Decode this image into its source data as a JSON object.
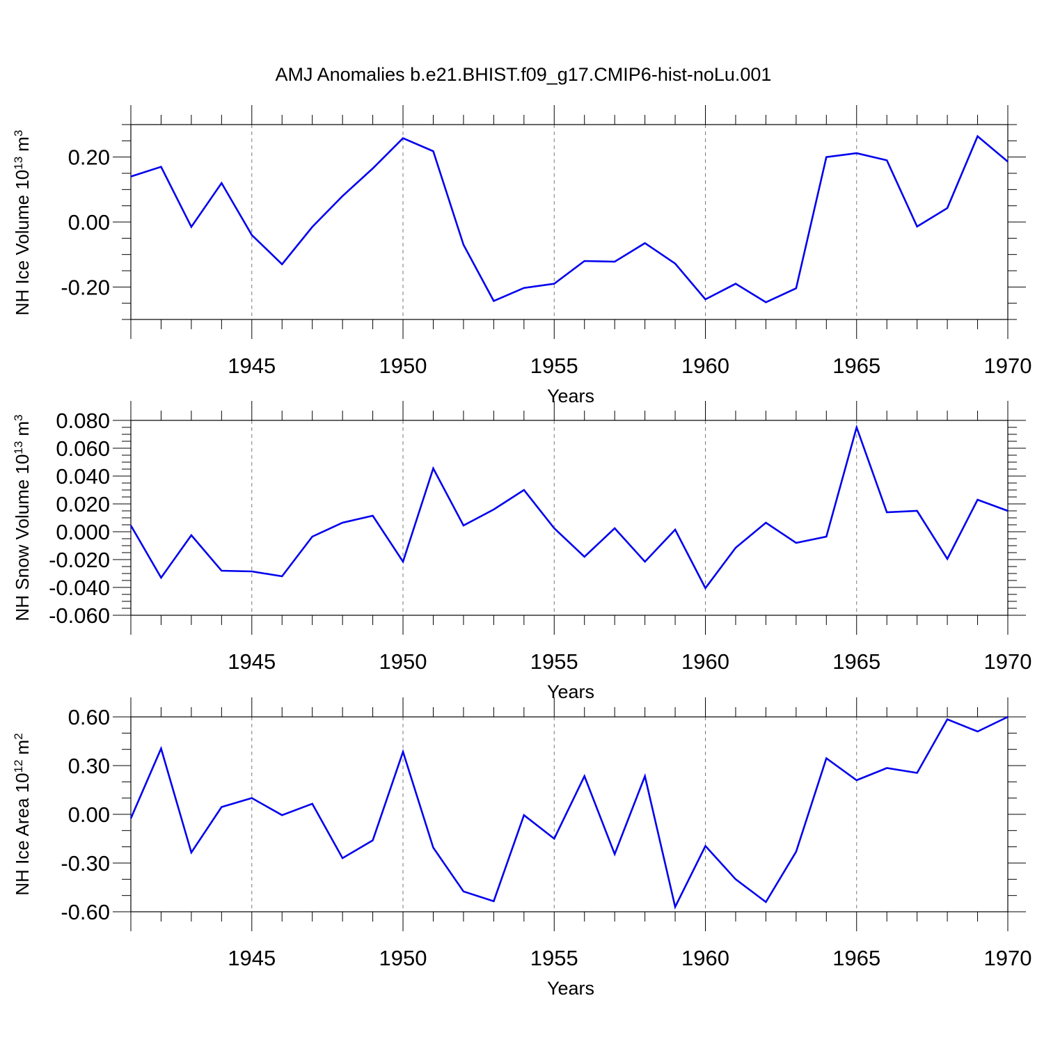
{
  "figure": {
    "title": "AMJ Anomalies b.e21.BHIST.f09_g17.CMIP6-hist-noLu.001"
  },
  "chart_data": [
    {
      "type": "line",
      "ylabel_main": "NH Ice Volume 10",
      "ylabel_exp": "13",
      "ylabel_unit": "m",
      "ylabel_unit_exp": "3",
      "xlabel": "Years",
      "xlim": [
        1941,
        1970
      ],
      "ylim": [
        -0.3,
        0.3
      ],
      "yticks": [
        -0.2,
        0.0,
        0.2
      ],
      "ytick_labels": [
        "-0.20",
        "0.00",
        "0.20"
      ],
      "yminor_step": 0.05,
      "xticks": [
        1945,
        1950,
        1955,
        1960,
        1965,
        1970
      ],
      "xtick_labels": [
        "1945",
        "1950",
        "1955",
        "1960",
        "1965",
        "1970"
      ],
      "line_color": "#0000ee",
      "series": [
        {
          "name": "NH Ice Volume",
          "x": [
            1941,
            1942,
            1943,
            1944,
            1945,
            1946,
            1947,
            1948,
            1949,
            1950,
            1951,
            1952,
            1953,
            1954,
            1955,
            1956,
            1957,
            1958,
            1959,
            1960,
            1961,
            1962,
            1963,
            1964,
            1965,
            1966,
            1967,
            1968,
            1969,
            1970
          ],
          "values": [
            0.14,
            0.17,
            -0.015,
            0.12,
            -0.04,
            -0.13,
            -0.015,
            0.08,
            0.165,
            0.258,
            0.218,
            -0.07,
            -0.243,
            -0.203,
            -0.19,
            -0.12,
            -0.122,
            -0.065,
            -0.128,
            -0.238,
            -0.19,
            -0.247,
            -0.204,
            0.2,
            0.212,
            0.19,
            -0.014,
            0.043,
            0.264,
            0.186
          ]
        }
      ]
    },
    {
      "type": "line",
      "ylabel_main": "NH Snow Volume 10",
      "ylabel_exp": "13",
      "ylabel_unit": "m",
      "ylabel_unit_exp": "3",
      "xlabel": "Years",
      "xlim": [
        1941,
        1970
      ],
      "ylim": [
        -0.06,
        0.08
      ],
      "yticks": [
        -0.06,
        -0.04,
        -0.02,
        0.0,
        0.02,
        0.04,
        0.06,
        0.08
      ],
      "ytick_labels": [
        "-0.060",
        "-0.040",
        "-0.020",
        "0.000",
        "0.020",
        "0.040",
        "0.060",
        "0.080"
      ],
      "yminor_step": 0.005,
      "xticks": [
        1945,
        1950,
        1955,
        1960,
        1965,
        1970
      ],
      "xtick_labels": [
        "1945",
        "1950",
        "1955",
        "1960",
        "1965",
        "1970"
      ],
      "line_color": "#0000ee",
      "series": [
        {
          "name": "NH Snow Volume",
          "x": [
            1941,
            1942,
            1943,
            1944,
            1945,
            1946,
            1947,
            1948,
            1949,
            1950,
            1951,
            1952,
            1953,
            1954,
            1955,
            1956,
            1957,
            1958,
            1959,
            1960,
            1961,
            1962,
            1963,
            1964,
            1965,
            1966,
            1967,
            1968,
            1969,
            1970
          ],
          "values": [
            0.0045,
            -0.033,
            -0.0025,
            -0.028,
            -0.0285,
            -0.032,
            -0.0035,
            0.0065,
            0.0115,
            -0.0215,
            0.0455,
            0.0045,
            0.016,
            0.03,
            0.0025,
            -0.018,
            0.0025,
            -0.0215,
            0.0015,
            -0.0405,
            -0.0115,
            0.0065,
            -0.008,
            -0.0035,
            0.075,
            0.014,
            0.015,
            -0.0195,
            0.023,
            0.015
          ]
        }
      ]
    },
    {
      "type": "line",
      "ylabel_main": "NH Ice Area 10",
      "ylabel_exp": "12",
      "ylabel_unit": "m",
      "ylabel_unit_exp": "2",
      "xlabel": "Years",
      "xlim": [
        1941,
        1970
      ],
      "ylim": [
        -0.6,
        0.6
      ],
      "yticks": [
        -0.6,
        -0.3,
        0.0,
        0.3,
        0.6
      ],
      "ytick_labels": [
        "-0.60",
        "-0.30",
        "0.00",
        "0.30",
        "0.60"
      ],
      "yminor_step": 0.1,
      "xticks": [
        1945,
        1950,
        1955,
        1960,
        1965,
        1970
      ],
      "xtick_labels": [
        "1945",
        "1950",
        "1955",
        "1960",
        "1965",
        "1970"
      ],
      "line_color": "#0000ee",
      "series": [
        {
          "name": "NH Ice Area",
          "x": [
            1941,
            1942,
            1943,
            1944,
            1945,
            1946,
            1947,
            1948,
            1949,
            1950,
            1951,
            1952,
            1953,
            1954,
            1955,
            1956,
            1957,
            1958,
            1959,
            1960,
            1961,
            1962,
            1963,
            1964,
            1965,
            1966,
            1967,
            1968,
            1969,
            1970
          ],
          "values": [
            -0.025,
            0.405,
            -0.235,
            0.045,
            0.1,
            -0.005,
            0.065,
            -0.27,
            -0.16,
            0.385,
            -0.205,
            -0.475,
            -0.535,
            -0.005,
            -0.15,
            0.235,
            -0.245,
            0.235,
            -0.57,
            -0.195,
            -0.4,
            -0.54,
            -0.23,
            0.345,
            0.21,
            0.285,
            0.255,
            0.585,
            0.51,
            0.6
          ]
        }
      ]
    }
  ]
}
